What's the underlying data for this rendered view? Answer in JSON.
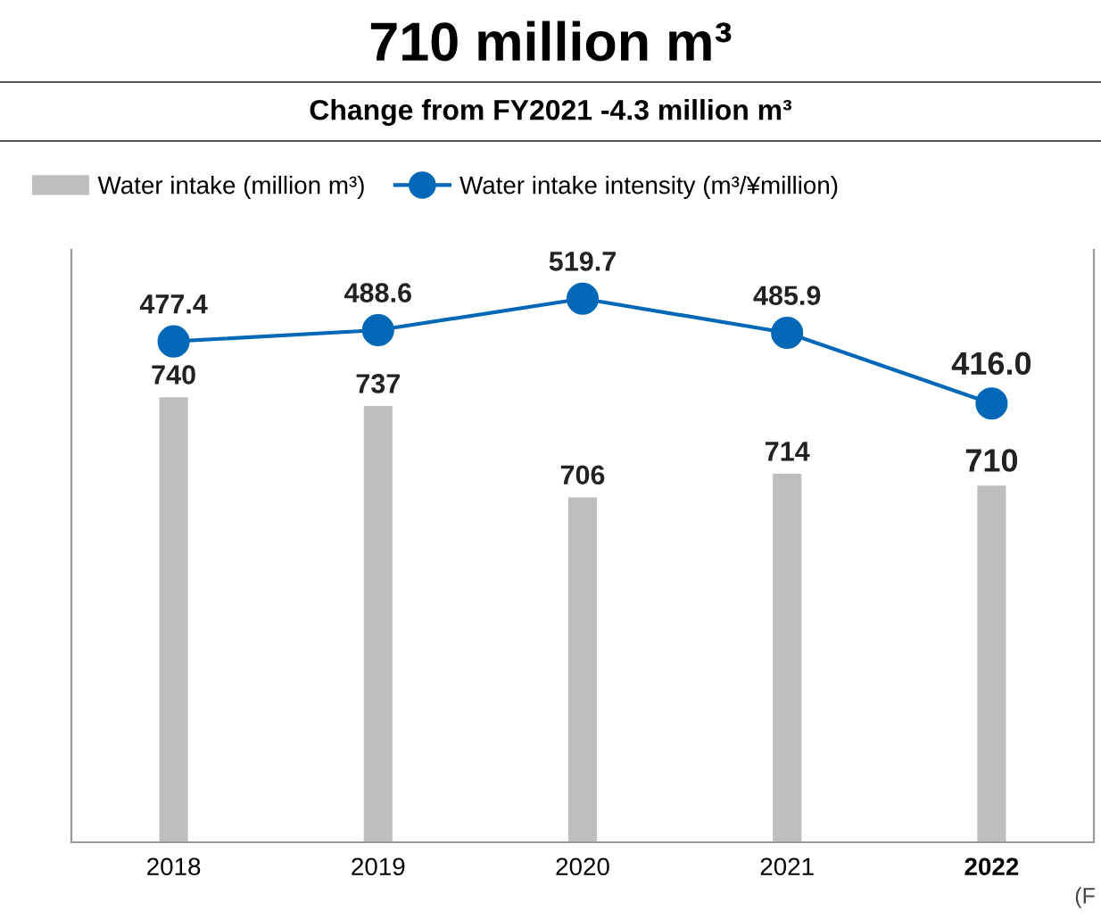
{
  "chart_data": {
    "type": "bar",
    "title": "710 million m³",
    "subtitle": "Change from FY2021 -4.3 million m³",
    "categories": [
      "2018",
      "2019",
      "2020",
      "2021",
      "2022"
    ],
    "series": [
      {
        "name": "Water intake (million m³)",
        "color": "#bebebf",
        "values": [
          740,
          737,
          706,
          714,
          710
        ]
      },
      {
        "name": "Water intake intensity (m³/¥million)",
        "type": "line",
        "axis": "y2",
        "color": "#0068b7",
        "marker": "circle",
        "values": [
          477.4,
          488.6,
          519.7,
          485.9,
          416.0
        ],
        "value_labels": [
          "477.4",
          "488.6",
          "519.7",
          "485.9",
          "416.0"
        ]
      }
    ],
    "ylim": [
      589,
      790
    ],
    "y2lim": [
      -18,
      568
    ],
    "tick_labels": "x",
    "data_labels": true,
    "legend": "top left",
    "grid": false,
    "annotations": [
      "(F"
    ]
  }
}
